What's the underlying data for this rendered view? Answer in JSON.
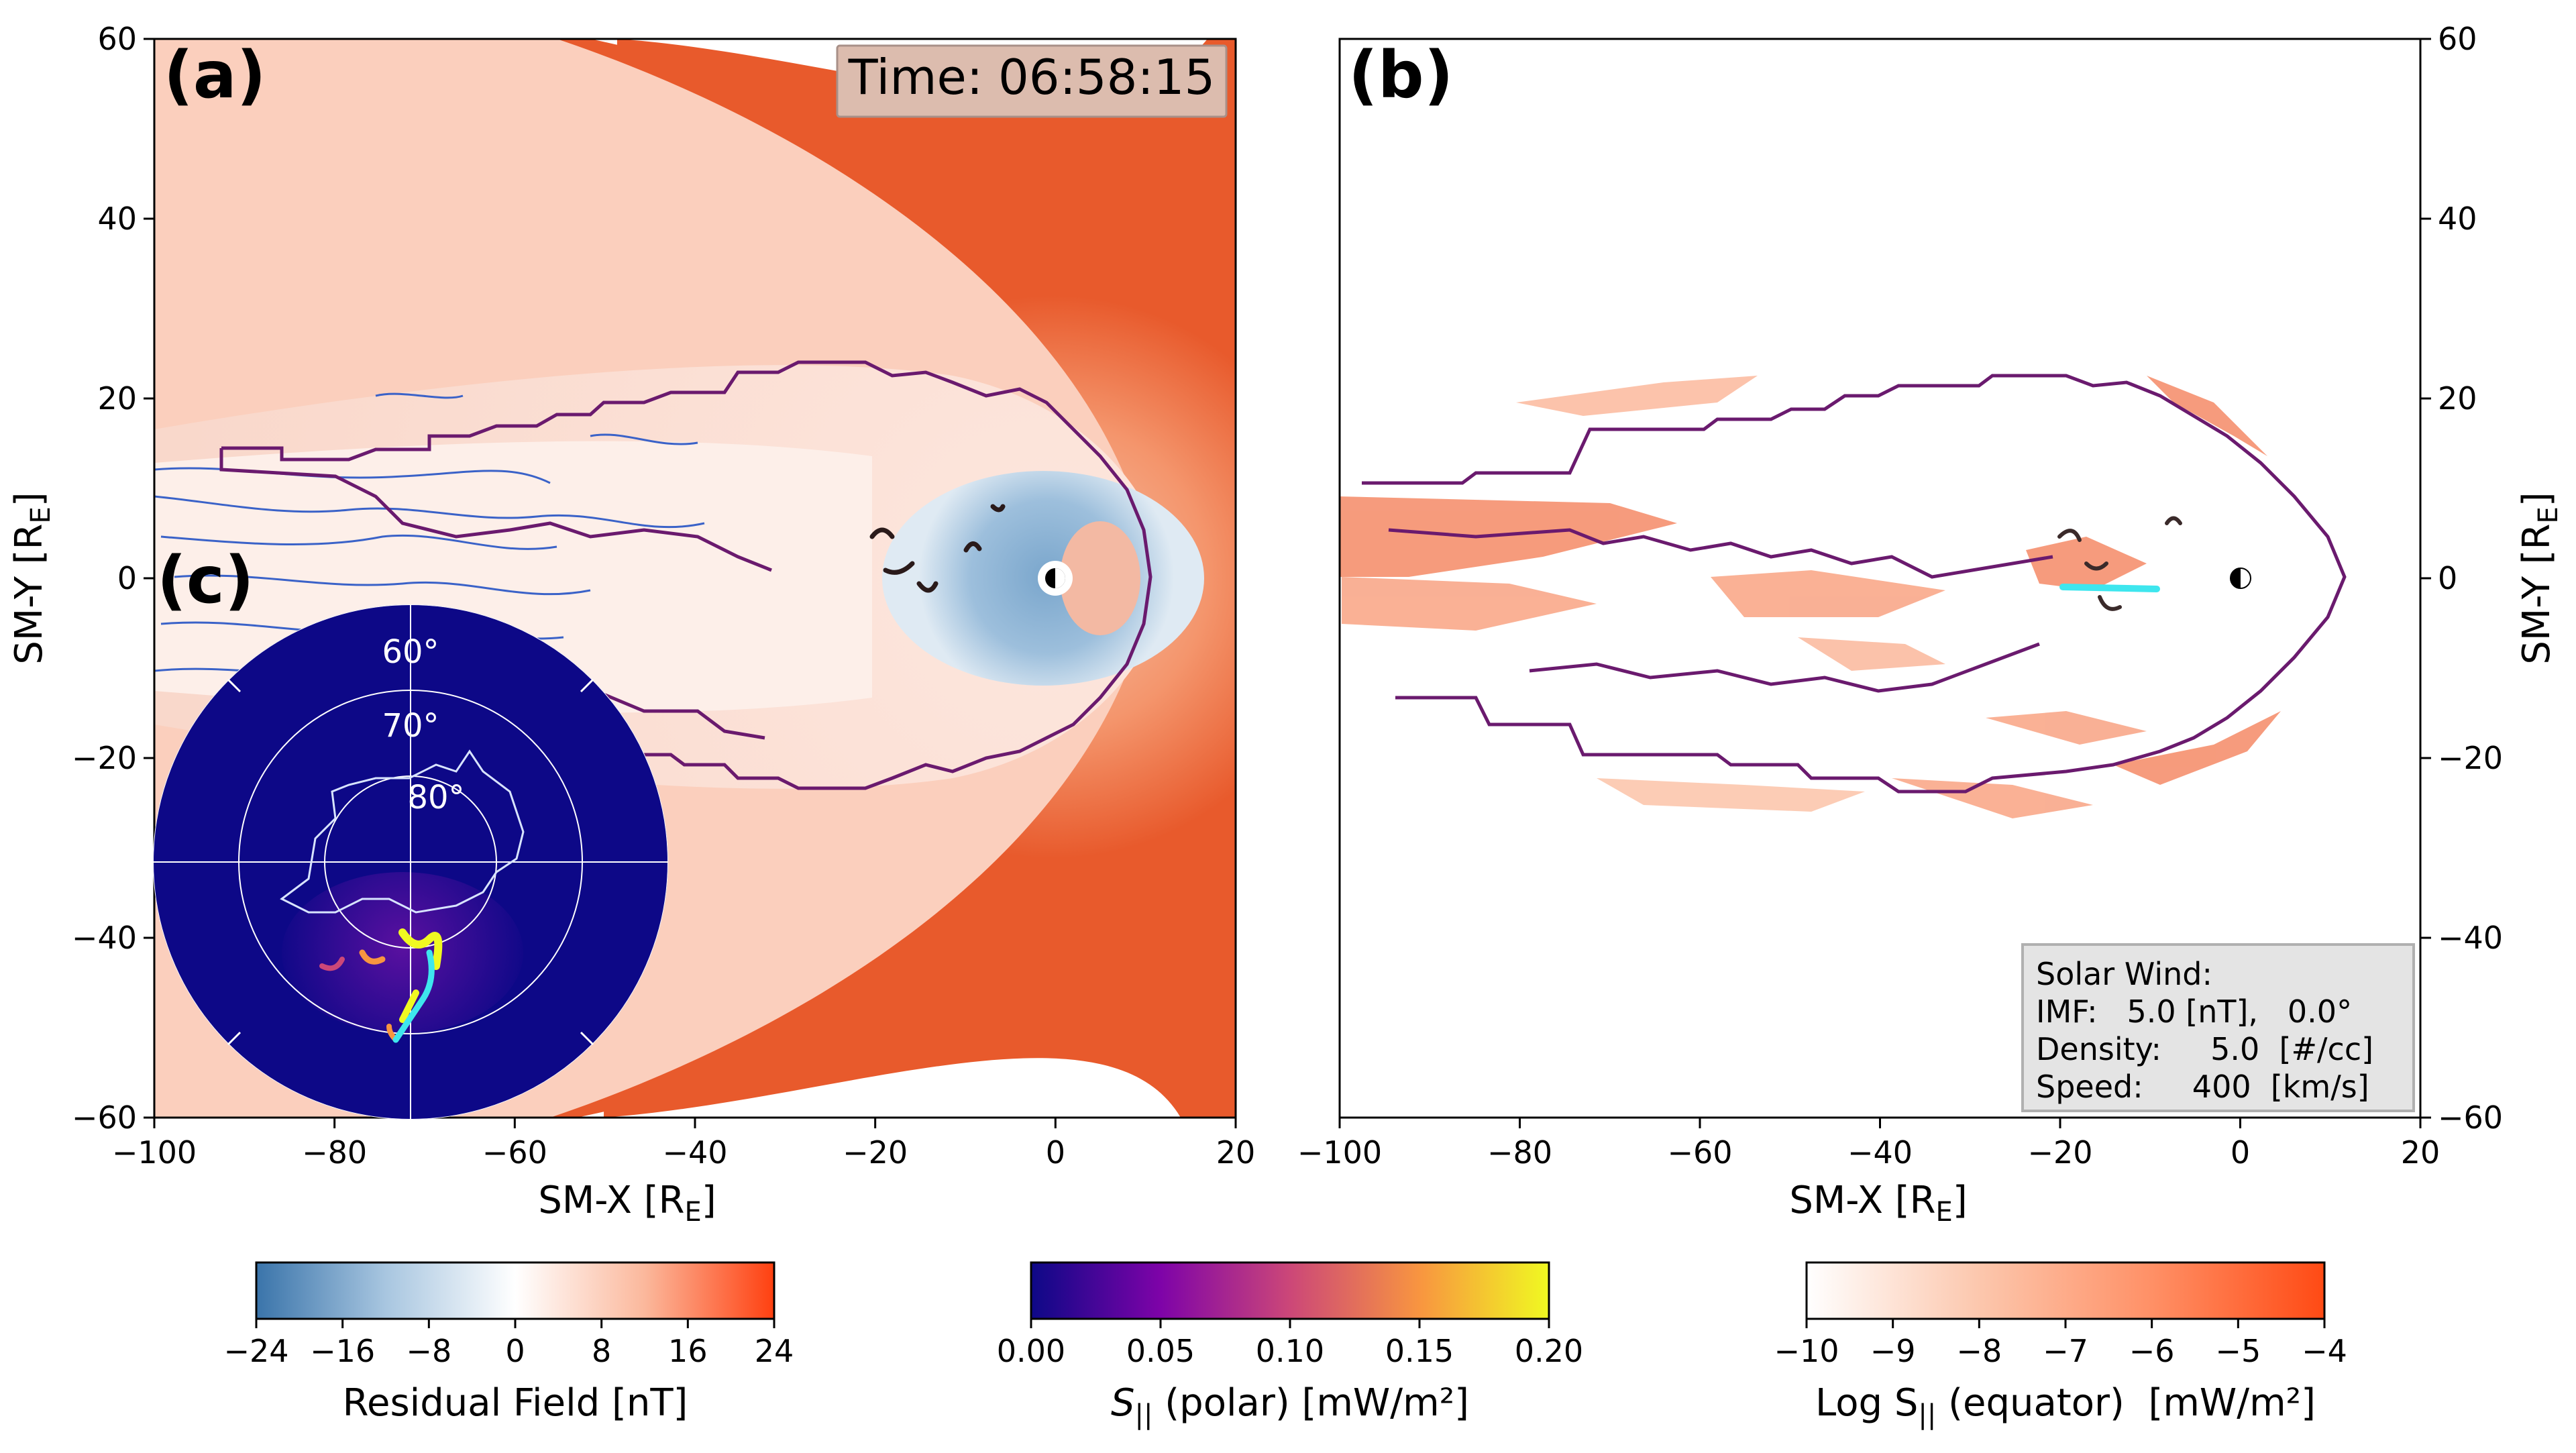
{
  "figure": {
    "panel_a": {
      "label": "(a)",
      "time_label": "Time: 06:58:15",
      "xlabel_main": "SM-X [R",
      "xlabel_sub": "E",
      "xlabel_end": "]",
      "ylabel_main": "SM-Y [R",
      "ylabel_sub": "E",
      "ylabel_end": "]"
    },
    "panel_b": {
      "label": "(b)",
      "xlabel_main": "SM-X [R",
      "xlabel_sub": "E",
      "xlabel_end": "]",
      "ylabel_main": "SM-Y [R",
      "ylabel_sub": "E",
      "ylabel_end": "]",
      "solar_wind": {
        "title": "Solar Wind:",
        "lines": [
          "IMF:   5.0 [nT],   0.0°",
          "Density:     5.0  [#/cc]",
          "Speed:     400  [km/s]"
        ]
      }
    },
    "panel_c": {
      "label": "(c)",
      "lat_labels": [
        "60°",
        "70°",
        "80°"
      ]
    }
  },
  "chart_data": [
    {
      "type": "heatmap",
      "panel": "(a)",
      "xlim": [
        -100,
        20
      ],
      "ylim": [
        -60,
        60
      ],
      "xticks": [
        -100,
        -80,
        -60,
        -40,
        -20,
        0,
        20
      ],
      "yticks": [
        -60,
        -40,
        -20,
        0,
        20,
        40,
        60
      ],
      "xtick_labels": [
        "−100",
        "−80",
        "−60",
        "−40",
        "−20",
        "0",
        "20"
      ],
      "ytick_labels": [
        "−60",
        "−40",
        "−20",
        "0",
        "20",
        "40",
        "60"
      ],
      "magnetopause_nose_x": 12,
      "earth_position": [
        0,
        0
      ]
    },
    {
      "type": "heatmap",
      "panel": "(b)",
      "xlim": [
        -100,
        20
      ],
      "ylim": [
        -60,
        60
      ],
      "xticks": [
        -100,
        -80,
        -60,
        -40,
        -20,
        0,
        20
      ],
      "yticks": [
        -60,
        -40,
        -20,
        0,
        20,
        40,
        60
      ],
      "xtick_labels": [
        "−100",
        "−80",
        "−60",
        "−40",
        "−20",
        "0",
        "20"
      ],
      "ytick_labels": [
        "−60",
        "−40",
        "−20",
        "0",
        "20",
        "40",
        "60"
      ],
      "earth_position": [
        0,
        0
      ]
    },
    {
      "type": "heatmap",
      "panel": "(c)",
      "projection": "polar",
      "lat_rings": [
        60,
        70,
        80
      ]
    }
  ],
  "colorbars": [
    {
      "label": "Residual Field [nT]",
      "colormap": "diverging-blue-white-red",
      "vmin": -24,
      "vmax": 24,
      "ticks": [
        -24,
        -16,
        -8,
        0,
        8,
        16,
        24
      ],
      "tick_labels": [
        "−24",
        "−16",
        "−8",
        "0",
        "8",
        "16",
        "24"
      ],
      "colors": [
        "#3a74aa",
        "#a8c6e0",
        "#ffffff",
        "#fbb89c",
        "#ff4010"
      ]
    },
    {
      "label_pre": "S",
      "label_sub": "||",
      "label_post": " (polar) [mW/m²]",
      "colormap": "plasma",
      "vmin": 0.0,
      "vmax": 0.2,
      "ticks": [
        0.0,
        0.05,
        0.1,
        0.15,
        0.2
      ],
      "tick_labels": [
        "0.00",
        "0.05",
        "0.10",
        "0.15",
        "0.20"
      ],
      "colors": [
        "#0d0887",
        "#7e03a8",
        "#cc4778",
        "#f89540",
        "#f0f921"
      ]
    },
    {
      "label_pre": "Log S",
      "label_sub": "||",
      "label_post": " (equator)  [mW/m²]",
      "colormap": "white-to-orange",
      "vmin": -10,
      "vmax": -4,
      "ticks": [
        -10,
        -9,
        -8,
        -7,
        -6,
        -5,
        -4
      ],
      "tick_labels": [
        "−10",
        "−9",
        "−8",
        "−7",
        "−6",
        "−5",
        "−4"
      ],
      "colors": [
        "#ffffff",
        "#fcc7ad",
        "#ff9066",
        "#ff4a14"
      ]
    }
  ],
  "colors": {
    "contour_purple": "#6a1a6e",
    "contour_blue": "#3a62c8",
    "polar_background": "#0d0887",
    "cyan_trace": "#3ee6ee"
  }
}
